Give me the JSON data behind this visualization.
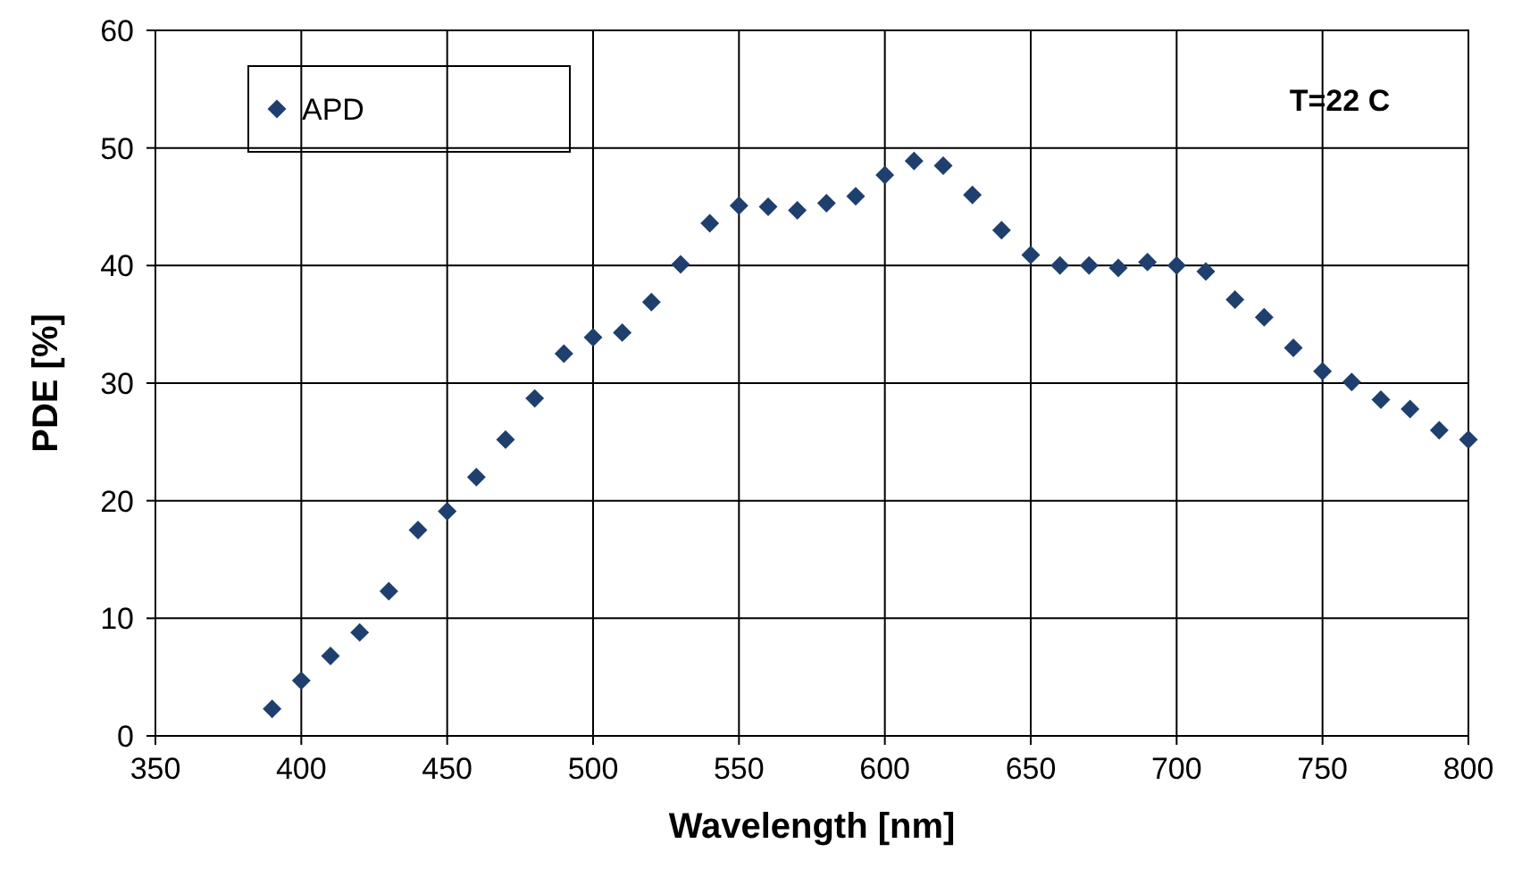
{
  "chart_data": {
    "type": "scatter",
    "xlabel": "Wavelength [nm]",
    "ylabel": "PDE [%]",
    "annotations": [
      "T=22 C"
    ],
    "x": [
      390,
      400,
      410,
      420,
      430,
      440,
      450,
      460,
      470,
      480,
      490,
      500,
      510,
      520,
      530,
      540,
      550,
      560,
      570,
      580,
      590,
      600,
      610,
      620,
      630,
      640,
      650,
      660,
      670,
      680,
      690,
      700,
      710,
      720,
      730,
      740,
      750,
      760,
      770,
      780,
      790,
      800
    ],
    "series": [
      {
        "name": "APD",
        "color": "#1f3f6e",
        "values": [
          2.3,
          4.7,
          6.8,
          8.8,
          12.3,
          17.5,
          19.1,
          22.0,
          25.2,
          28.7,
          32.5,
          33.9,
          34.3,
          36.9,
          40.1,
          43.6,
          45.1,
          45.0,
          44.7,
          45.3,
          45.9,
          47.7,
          48.9,
          48.5,
          46.0,
          43.0,
          40.9,
          40.0,
          40.0,
          39.8,
          40.3,
          40.0,
          39.5,
          37.1,
          35.6,
          33.0,
          31.0,
          30.1,
          28.6,
          27.8,
          26.0,
          25.2
        ]
      }
    ],
    "xlim": [
      350,
      800
    ],
    "xticks": [
      350,
      400,
      450,
      500,
      550,
      600,
      650,
      700,
      750,
      800
    ],
    "ylim": [
      0,
      60
    ],
    "yticks": [
      0,
      10,
      20,
      30,
      40,
      50,
      60
    ],
    "grid": true,
    "legend": "top left",
    "marker": "diamond"
  }
}
